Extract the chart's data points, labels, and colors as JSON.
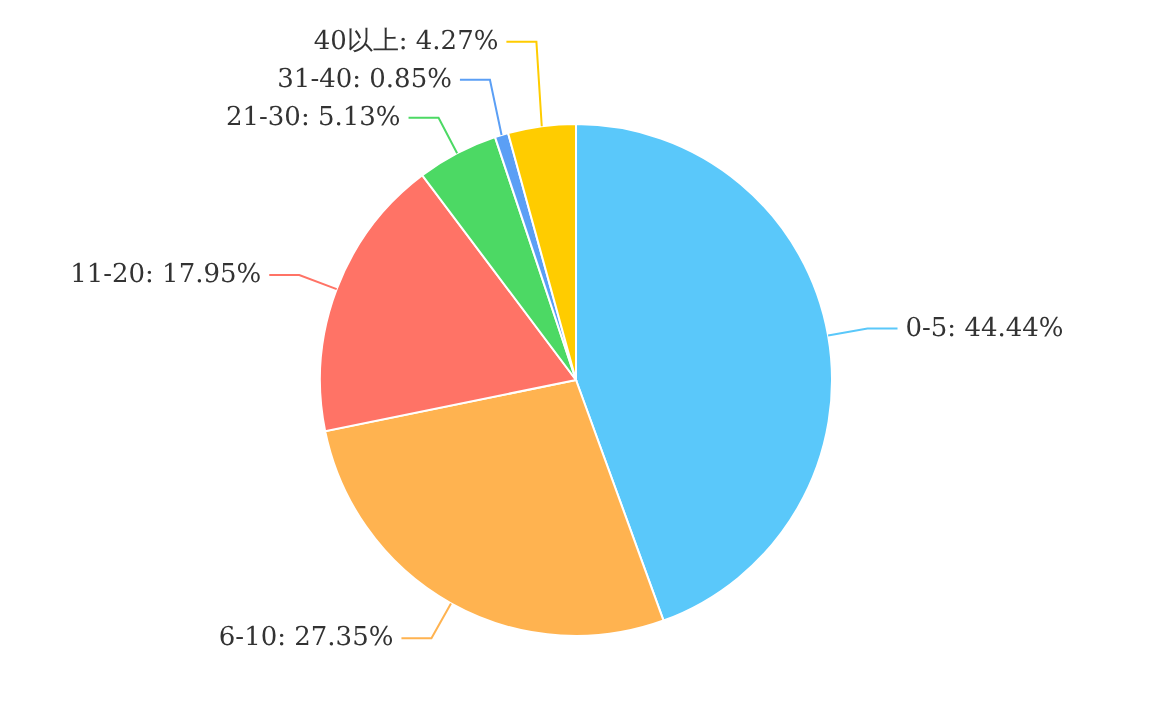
{
  "chart_data": {
    "type": "pie",
    "categories": [
      "0-5",
      "6-10",
      "11-20",
      "21-30",
      "31-40",
      "40以上"
    ],
    "values": [
      44.44,
      27.35,
      17.95,
      5.13,
      0.85,
      4.27
    ],
    "value_labels": [
      "44.44%",
      "27.35%",
      "17.95%",
      "5.13%",
      "0.85%",
      "4.27%"
    ],
    "colors": [
      "#5ac8fa",
      "#ffb350",
      "#ff7366",
      "#4cd964",
      "#5b9ff5",
      "#ffcc00"
    ]
  }
}
